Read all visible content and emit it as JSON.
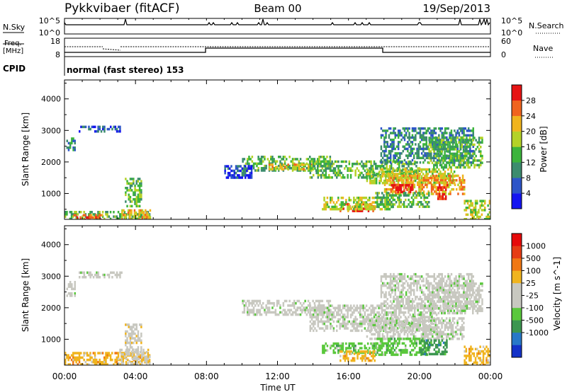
{
  "header": {
    "title": "Pykkvibaer (fitACF)",
    "beam": "Beam 00",
    "date": "19/Sep/2013"
  },
  "panels": {
    "nsky": {
      "label": "N.Sky",
      "ticks_left": [
        "10^5",
        "10^0"
      ],
      "right_label": "N.Search",
      "ticks_right": [
        "10^5",
        "10^0"
      ]
    },
    "freq": {
      "label_line1": "Freq.",
      "label_line2": "[MHz]",
      "ticks_left": [
        "18",
        "8"
      ],
      "right_label": "Nave",
      "ticks_right": [
        "60",
        "0"
      ]
    },
    "cpid": {
      "label": "CPID",
      "text": "normal (fast stereo) 153"
    }
  },
  "chart_data": [
    {
      "type": "heatmap",
      "name": "power",
      "ylabel": "Slant Range [km]",
      "yticks": [
        "1000",
        "2000",
        "3000",
        "4000"
      ],
      "ylim": [
        180,
        4600
      ],
      "xlim": [
        0,
        24
      ],
      "colorbar_label": "Power [dB]",
      "colorbar_ticks": [
        "4",
        "8",
        "12",
        "16",
        "20",
        "24",
        "28"
      ],
      "colorbar_colors": [
        "#1414f0",
        "#2d55c8",
        "#3c8c6e",
        "#3cb43c",
        "#b4d228",
        "#f0b41e",
        "#f0641e",
        "#e61414"
      ],
      "features": [
        {
          "t": [
            0.1,
            0.6
          ],
          "r": [
            2350,
            2850
          ],
          "level": 2
        },
        {
          "t": [
            0.0,
            4.8
          ],
          "r": [
            200,
            450
          ],
          "level": 3
        },
        {
          "t": [
            0.5,
            2.2
          ],
          "r": [
            180,
            350
          ],
          "level": 6
        },
        {
          "t": [
            3.2,
            4.8
          ],
          "r": [
            200,
            500
          ],
          "level": 5
        },
        {
          "t": [
            3.4,
            4.3
          ],
          "r": [
            600,
            1500
          ],
          "level": 3
        },
        {
          "t": [
            0.8,
            3.2
          ],
          "r": [
            2950,
            3150
          ],
          "level": 1
        },
        {
          "t": [
            10.0,
            15.0
          ],
          "r": [
            1700,
            2200
          ],
          "level": 3
        },
        {
          "t": [
            11.5,
            14.0
          ],
          "r": [
            1750,
            1950
          ],
          "level": 5
        },
        {
          "t": [
            13.8,
            20.0
          ],
          "r": [
            1500,
            2050
          ],
          "level": 3
        },
        {
          "t": [
            17.0,
            22.0
          ],
          "r": [
            1300,
            1800
          ],
          "level": 4
        },
        {
          "t": [
            18.0,
            22.5
          ],
          "r": [
            1000,
            1600
          ],
          "level": 5
        },
        {
          "t": [
            18.3,
            19.6
          ],
          "r": [
            1050,
            1300
          ],
          "level": 7
        },
        {
          "t": [
            21.0,
            21.6
          ],
          "r": [
            800,
            1300
          ],
          "level": 7
        },
        {
          "t": [
            15.5,
            17.5
          ],
          "r": [
            450,
            700
          ],
          "level": 6
        },
        {
          "t": [
            14.5,
            18.5
          ],
          "r": [
            500,
            900
          ],
          "level": 4
        },
        {
          "t": [
            17.5,
            20.5
          ],
          "r": [
            550,
            1050
          ],
          "level": 3
        },
        {
          "t": [
            17.8,
            23.0
          ],
          "r": [
            2000,
            3100
          ],
          "level": 2
        },
        {
          "t": [
            20.5,
            23.5
          ],
          "r": [
            1800,
            2800
          ],
          "level": 3
        },
        {
          "t": [
            22.5,
            24.0
          ],
          "r": [
            180,
            800
          ],
          "level": 4
        },
        {
          "t": [
            9.0,
            10.5
          ],
          "r": [
            1500,
            1900
          ],
          "level": 1
        }
      ]
    },
    {
      "type": "heatmap",
      "name": "velocity",
      "ylabel": "Slant Range [km]",
      "yticks": [
        "1000",
        "2000",
        "3000",
        "4000"
      ],
      "ylim": [
        180,
        4600
      ],
      "xlim": [
        0,
        24
      ],
      "xticks": [
        "00:00",
        "04:00",
        "08:00",
        "12:00",
        "16:00",
        "20:00",
        "00:00"
      ],
      "xlabel": "Time UT",
      "colorbar_label": "Velocity [m s^-1]",
      "colorbar_ticks": [
        "1000",
        "500",
        "100",
        "25",
        "-25",
        "-100",
        "-500",
        "-1000"
      ],
      "colorbar_colors": [
        "#1432c8",
        "#2878c8",
        "#3c9650",
        "#5ac83c",
        "#c8c8c0",
        "#c8c8c0",
        "#f0b41e",
        "#f07814",
        "#e63c14",
        "#e60a0a"
      ],
      "features": [
        {
          "t": [
            0.1,
            0.6
          ],
          "r": [
            2350,
            2850
          ],
          "cls": 4
        },
        {
          "t": [
            0.0,
            4.8
          ],
          "r": [
            200,
            600
          ],
          "cls": 6
        },
        {
          "t": [
            3.0,
            4.8
          ],
          "r": [
            200,
            700
          ],
          "cls": 5
        },
        {
          "t": [
            3.4,
            4.3
          ],
          "r": [
            600,
            1500
          ],
          "cls": 5
        },
        {
          "t": [
            0.8,
            3.2
          ],
          "r": [
            2950,
            3150
          ],
          "cls": 4
        },
        {
          "t": [
            10.0,
            15.0
          ],
          "r": [
            1750,
            2250
          ],
          "cls": 4
        },
        {
          "t": [
            13.8,
            21.0
          ],
          "r": [
            1300,
            2100
          ],
          "cls": 4
        },
        {
          "t": [
            17.0,
            22.5
          ],
          "r": [
            1000,
            1700
          ],
          "cls": 4
        },
        {
          "t": [
            20.5,
            23.5
          ],
          "r": [
            1800,
            2800
          ],
          "cls": 4
        },
        {
          "t": [
            17.8,
            23.0
          ],
          "r": [
            2000,
            3100
          ],
          "cls": 4
        },
        {
          "t": [
            14.5,
            18.5
          ],
          "r": [
            600,
            900
          ],
          "cls": 3
        },
        {
          "t": [
            15.5,
            17.5
          ],
          "r": [
            350,
            650
          ],
          "cls": 6
        },
        {
          "t": [
            17.5,
            20.5
          ],
          "r": [
            500,
            1050
          ],
          "cls": 3
        },
        {
          "t": [
            20.0,
            21.5
          ],
          "r": [
            500,
            1000
          ],
          "cls": 2
        },
        {
          "t": [
            22.5,
            24.0
          ],
          "r": [
            180,
            800
          ],
          "cls": 6
        }
      ]
    }
  ]
}
